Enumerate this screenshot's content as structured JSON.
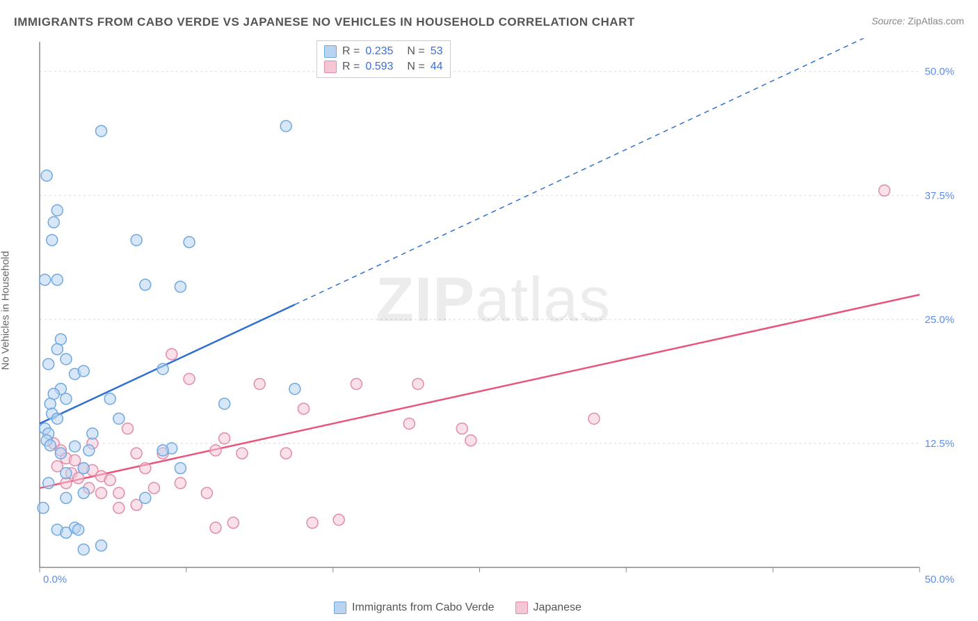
{
  "title": "IMMIGRANTS FROM CABO VERDE VS JAPANESE NO VEHICLES IN HOUSEHOLD CORRELATION CHART",
  "source_label": "Source:",
  "source_value": "ZipAtlas.com",
  "y_axis_label": "No Vehicles in Household",
  "watermark": {
    "bold": "ZIP",
    "rest": "atlas"
  },
  "chart": {
    "type": "scatter",
    "xlim": [
      0,
      50
    ],
    "ylim": [
      0,
      53
    ],
    "x_ticks": [
      0,
      50
    ],
    "x_tick_labels": [
      "0.0%",
      "50.0%"
    ],
    "y_ticks": [
      12.5,
      25.0,
      37.5,
      50.0
    ],
    "y_tick_labels": [
      "12.5%",
      "25.0%",
      "37.5%",
      "50.0%"
    ],
    "grid_x_minor": [
      0,
      8.33,
      16.67,
      25,
      33.33,
      41.67,
      50
    ],
    "background_color": "#ffffff",
    "grid_color": "#d8d8d8",
    "axis_color": "#888888",
    "marker_radius": 8,
    "marker_stroke_width": 1.5,
    "series": [
      {
        "name": "Immigrants from Cabo Verde",
        "color_fill": "#b8d4f0",
        "color_stroke": "#6fa8e0",
        "fill_opacity": 0.55,
        "R": "0.235",
        "N": "53",
        "trend": {
          "x1": 0,
          "y1": 14.5,
          "x2_solid": 14.5,
          "y2_solid": 26.5,
          "x2_dash": 50,
          "y2_dash": 56,
          "color": "#2f6fd0",
          "width": 2.5
        },
        "points": [
          [
            0.3,
            14.0
          ],
          [
            0.5,
            13.5
          ],
          [
            0.4,
            12.8
          ],
          [
            0.6,
            12.3
          ],
          [
            0.4,
            39.5
          ],
          [
            3.5,
            44.0
          ],
          [
            1.0,
            36.0
          ],
          [
            0.8,
            34.8
          ],
          [
            0.7,
            33.0
          ],
          [
            1.2,
            23.0
          ],
          [
            1.0,
            22.0
          ],
          [
            1.5,
            21.0
          ],
          [
            0.5,
            20.5
          ],
          [
            2.0,
            19.5
          ],
          [
            2.5,
            19.8
          ],
          [
            1.2,
            18.0
          ],
          [
            0.8,
            17.5
          ],
          [
            1.5,
            17.0
          ],
          [
            0.6,
            16.5
          ],
          [
            0.7,
            15.5
          ],
          [
            4.0,
            17.0
          ],
          [
            1.0,
            15.0
          ],
          [
            2.8,
            11.8
          ],
          [
            2.0,
            12.2
          ],
          [
            1.2,
            11.5
          ],
          [
            2.5,
            10.0
          ],
          [
            1.5,
            9.5
          ],
          [
            0.5,
            8.5
          ],
          [
            1.5,
            7.0
          ],
          [
            2.5,
            7.5
          ],
          [
            0.2,
            6.0
          ],
          [
            2.0,
            4.0
          ],
          [
            1.0,
            3.8
          ],
          [
            1.5,
            3.5
          ],
          [
            2.2,
            3.8
          ],
          [
            3.5,
            2.2
          ],
          [
            2.5,
            1.8
          ],
          [
            6.0,
            7.0
          ],
          [
            5.5,
            33.0
          ],
          [
            8.5,
            32.8
          ],
          [
            6.0,
            28.5
          ],
          [
            8.0,
            28.3
          ],
          [
            7.0,
            20.0
          ],
          [
            10.5,
            16.5
          ],
          [
            7.5,
            12.0
          ],
          [
            7.0,
            11.8
          ],
          [
            8.0,
            10.0
          ],
          [
            14.5,
            18.0
          ],
          [
            14.0,
            44.5
          ],
          [
            4.5,
            15.0
          ],
          [
            3.0,
            13.5
          ],
          [
            0.3,
            29.0
          ],
          [
            1.0,
            29.0
          ]
        ]
      },
      {
        "name": "Japanese",
        "color_fill": "#f5c6d6",
        "color_stroke": "#e08ca8",
        "fill_opacity": 0.55,
        "R": "0.593",
        "N": "44",
        "trend": {
          "x1": 0,
          "y1": 8.0,
          "x2_solid": 50,
          "y2_solid": 27.5,
          "color": "#e8547c",
          "width": 2.5
        },
        "points": [
          [
            0.8,
            12.5
          ],
          [
            1.2,
            11.8
          ],
          [
            1.5,
            11.0
          ],
          [
            2.0,
            10.8
          ],
          [
            1.0,
            10.2
          ],
          [
            2.5,
            10.0
          ],
          [
            1.8,
            9.5
          ],
          [
            3.0,
            9.8
          ],
          [
            2.2,
            9.0
          ],
          [
            3.5,
            9.2
          ],
          [
            1.5,
            8.5
          ],
          [
            4.0,
            8.8
          ],
          [
            2.8,
            8.0
          ],
          [
            3.5,
            7.5
          ],
          [
            4.5,
            7.5
          ],
          [
            5.0,
            14.0
          ],
          [
            5.5,
            11.5
          ],
          [
            6.0,
            10.0
          ],
          [
            7.0,
            11.5
          ],
          [
            6.5,
            8.0
          ],
          [
            8.0,
            8.5
          ],
          [
            7.5,
            21.5
          ],
          [
            8.5,
            19.0
          ],
          [
            9.5,
            7.5
          ],
          [
            10.0,
            4.0
          ],
          [
            11.0,
            4.5
          ],
          [
            10.5,
            13.0
          ],
          [
            10.0,
            11.8
          ],
          [
            11.5,
            11.5
          ],
          [
            12.5,
            18.5
          ],
          [
            14.0,
            11.5
          ],
          [
            15.5,
            4.5
          ],
          [
            17.0,
            4.8
          ],
          [
            15.0,
            16.0
          ],
          [
            18.0,
            18.5
          ],
          [
            21.5,
            18.5
          ],
          [
            21.0,
            14.5
          ],
          [
            24.0,
            14.0
          ],
          [
            24.5,
            12.8
          ],
          [
            31.5,
            15.0
          ],
          [
            4.5,
            6.0
          ],
          [
            5.5,
            6.3
          ],
          [
            48.0,
            38.0
          ],
          [
            3.0,
            12.5
          ]
        ]
      }
    ]
  },
  "legend": {
    "series1_label": "Immigrants from Cabo Verde",
    "series2_label": "Japanese"
  }
}
